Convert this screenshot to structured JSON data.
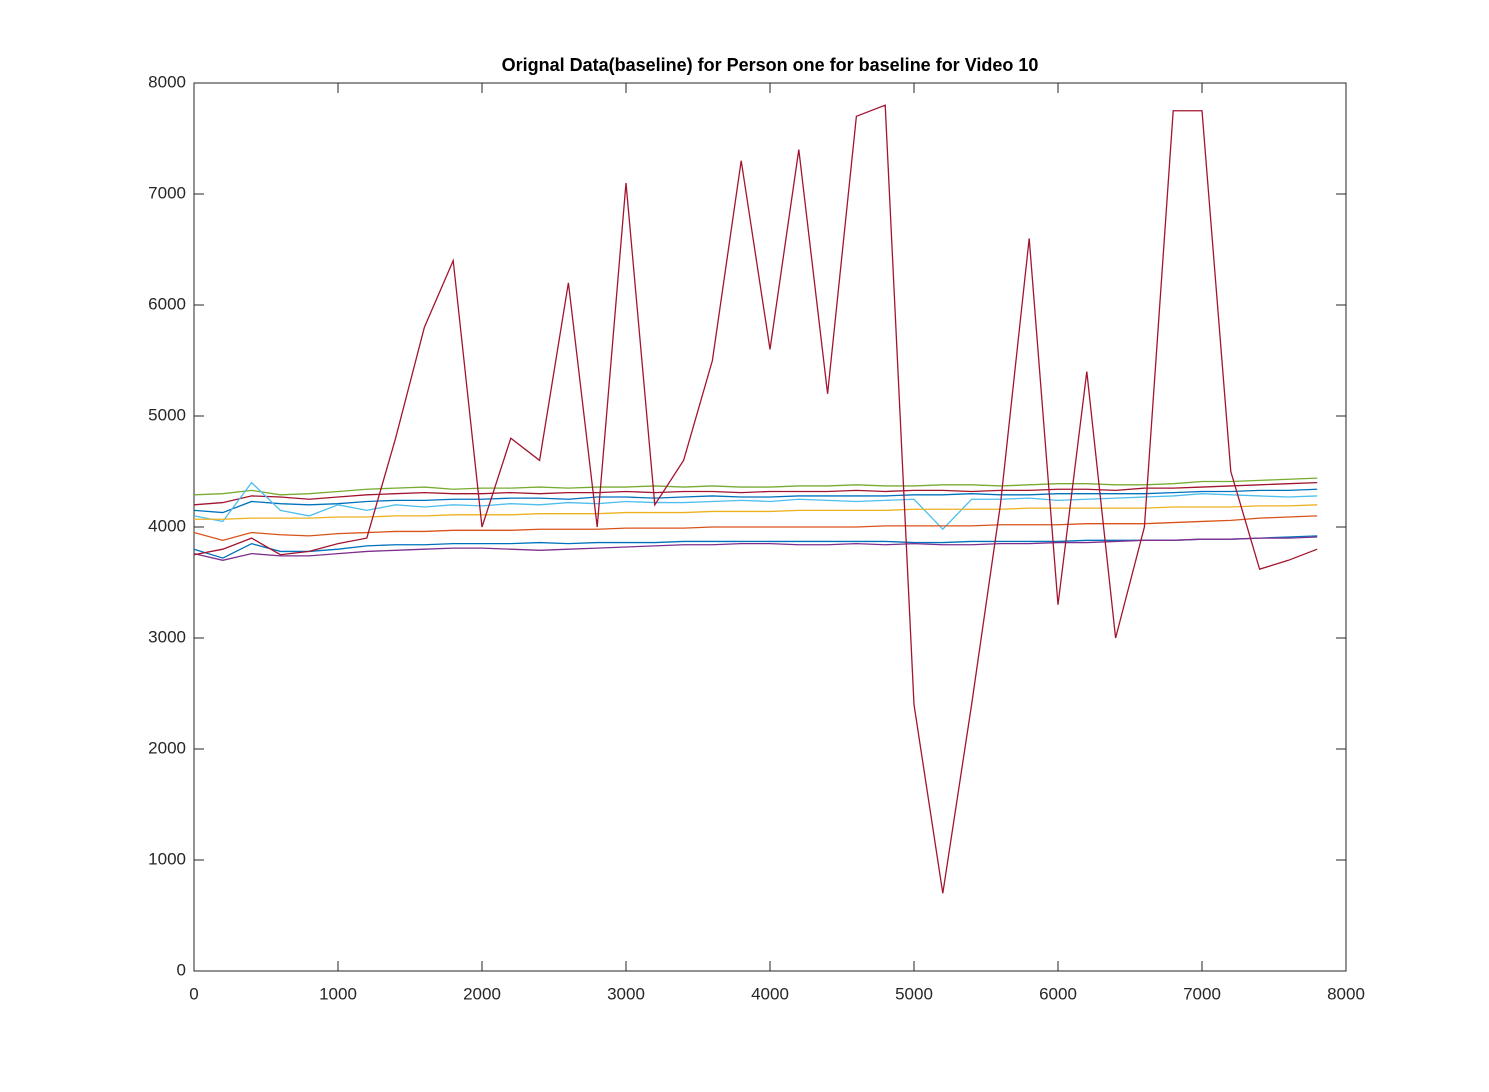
{
  "chart_data": {
    "type": "line",
    "title": "Orignal Data(baseline) for Person one for baseline for Video 10",
    "x": [
      0,
      200,
      400,
      600,
      800,
      1000,
      1200,
      1400,
      1600,
      1800,
      2000,
      2200,
      2400,
      2600,
      2800,
      3000,
      3200,
      3400,
      3600,
      3800,
      4000,
      4200,
      4400,
      4600,
      4800,
      5000,
      5200,
      5400,
      5600,
      5800,
      6000,
      6200,
      6400,
      6600,
      6800,
      7000,
      7200,
      7400,
      7600,
      7800
    ],
    "xlim": [
      0,
      8000
    ],
    "xticks": [
      0,
      1000,
      2000,
      3000,
      4000,
      5000,
      6000,
      7000,
      8000
    ],
    "ylim": [
      0,
      8000
    ],
    "yticks": [
      0,
      1000,
      2000,
      3000,
      4000,
      5000,
      6000,
      7000,
      8000
    ],
    "grid": false,
    "series": [
      {
        "color": "#77AC30",
        "values": [
          4290,
          4300,
          4330,
          4290,
          4300,
          4320,
          4340,
          4350,
          4360,
          4340,
          4350,
          4350,
          4360,
          4350,
          4360,
          4360,
          4370,
          4360,
          4370,
          4360,
          4360,
          4370,
          4370,
          4380,
          4370,
          4370,
          4380,
          4380,
          4370,
          4380,
          4390,
          4390,
          4380,
          4380,
          4390,
          4410,
          4410,
          4420,
          4430,
          4440
        ]
      },
      {
        "color": "#A2142F",
        "values": [
          4200,
          4220,
          4280,
          4270,
          4250,
          4270,
          4290,
          4300,
          4310,
          4300,
          4300,
          4310,
          4300,
          4310,
          4310,
          4320,
          4310,
          4320,
          4320,
          4310,
          4320,
          4320,
          4320,
          4330,
          4320,
          4330,
          4330,
          4320,
          4330,
          4330,
          4340,
          4340,
          4330,
          4350,
          4350,
          4360,
          4370,
          4380,
          4390,
          4400
        ]
      },
      {
        "color": "#0072BD",
        "values": [
          4150,
          4130,
          4230,
          4210,
          4200,
          4210,
          4230,
          4240,
          4240,
          4250,
          4250,
          4260,
          4260,
          4250,
          4270,
          4270,
          4260,
          4270,
          4280,
          4270,
          4270,
          4280,
          4280,
          4280,
          4280,
          4290,
          4290,
          4300,
          4290,
          4290,
          4300,
          4300,
          4300,
          4300,
          4310,
          4320,
          4320,
          4330,
          4330,
          4340
        ]
      },
      {
        "color": "#4DBEEE",
        "values": [
          4100,
          4050,
          4400,
          4150,
          4100,
          4200,
          4150,
          4200,
          4180,
          4200,
          4190,
          4210,
          4200,
          4220,
          4210,
          4230,
          4220,
          4220,
          4230,
          4240,
          4230,
          4250,
          4240,
          4230,
          4240,
          4250,
          3980,
          4250,
          4250,
          4260,
          4240,
          4250,
          4260,
          4270,
          4280,
          4300,
          4290,
          4280,
          4270,
          4280
        ]
      },
      {
        "color": "#EDB120",
        "values": [
          4070,
          4070,
          4080,
          4080,
          4080,
          4090,
          4090,
          4100,
          4100,
          4110,
          4110,
          4110,
          4120,
          4120,
          4120,
          4130,
          4130,
          4130,
          4140,
          4140,
          4140,
          4150,
          4150,
          4150,
          4150,
          4160,
          4160,
          4160,
          4160,
          4170,
          4170,
          4170,
          4170,
          4170,
          4180,
          4180,
          4180,
          4190,
          4190,
          4200
        ]
      },
      {
        "color": "#D95319",
        "values": [
          3950,
          3880,
          3950,
          3930,
          3920,
          3940,
          3950,
          3960,
          3960,
          3970,
          3970,
          3970,
          3980,
          3980,
          3980,
          3990,
          3990,
          3990,
          4000,
          4000,
          4000,
          4000,
          4000,
          4000,
          4010,
          4010,
          4010,
          4010,
          4020,
          4020,
          4020,
          4030,
          4030,
          4030,
          4040,
          4050,
          4060,
          4080,
          4090,
          4100
        ]
      },
      {
        "color": "#0072BD",
        "values": [
          3800,
          3720,
          3850,
          3780,
          3780,
          3800,
          3830,
          3840,
          3840,
          3850,
          3850,
          3850,
          3860,
          3850,
          3860,
          3860,
          3860,
          3870,
          3870,
          3870,
          3870,
          3870,
          3870,
          3870,
          3870,
          3860,
          3860,
          3870,
          3870,
          3870,
          3870,
          3880,
          3880,
          3880,
          3880,
          3890,
          3890,
          3900,
          3910,
          3920
        ]
      },
      {
        "color": "#7E2F8E",
        "values": [
          3760,
          3700,
          3760,
          3740,
          3740,
          3760,
          3780,
          3790,
          3800,
          3810,
          3810,
          3800,
          3790,
          3800,
          3810,
          3820,
          3830,
          3840,
          3840,
          3850,
          3850,
          3840,
          3840,
          3850,
          3840,
          3850,
          3840,
          3840,
          3850,
          3850,
          3860,
          3860,
          3870,
          3880,
          3880,
          3890,
          3890,
          3900,
          3900,
          3910
        ]
      },
      {
        "color": "#A2142F",
        "values": [
          3750,
          3800,
          3900,
          3750,
          3780,
          3850,
          3900,
          4800,
          5800,
          6400,
          4000,
          4800,
          4600,
          6200,
          4000,
          7100,
          4200,
          4600,
          5500,
          7300,
          5600,
          7400,
          5200,
          7700,
          7800,
          2400,
          700,
          2400,
          4200,
          6600,
          3300,
          5400,
          3000,
          4000,
          7750,
          7750,
          4500,
          3620,
          3700,
          3800
        ]
      }
    ]
  }
}
